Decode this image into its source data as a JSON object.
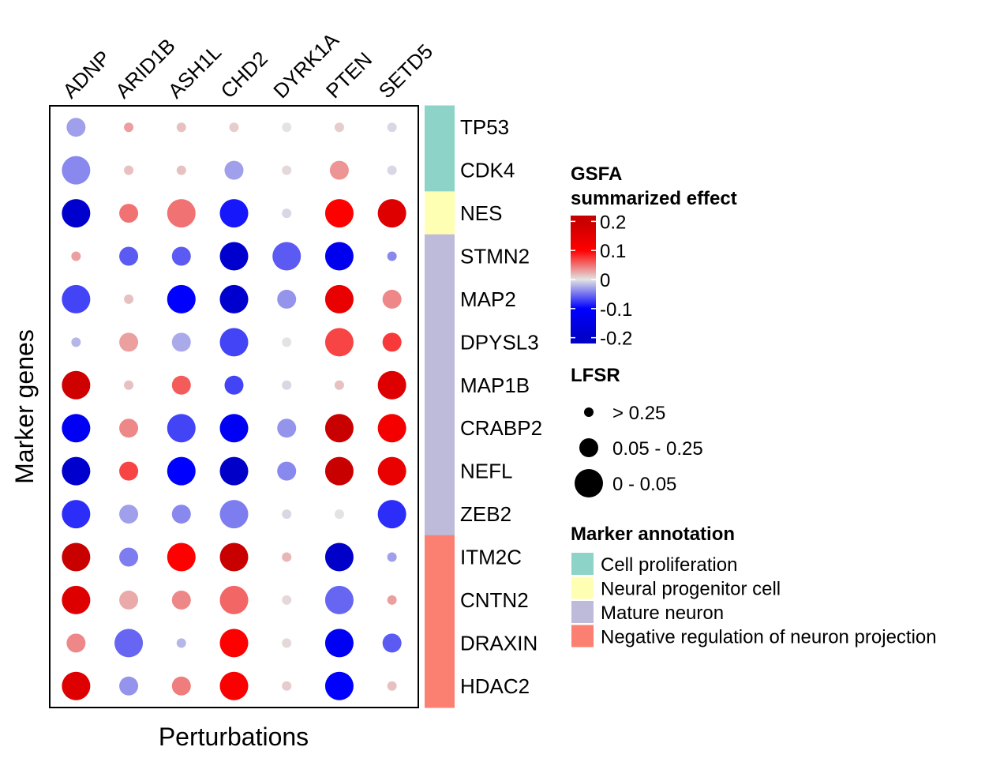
{
  "chart_data": {
    "type": "scatter",
    "subtype": "dot-matrix",
    "xlabel": "Perturbations",
    "ylabel": "Marker genes",
    "x_categories": [
      "ADNP",
      "ARID1B",
      "ASH1L",
      "CHD2",
      "DYRK1A",
      "PTEN",
      "SETD5"
    ],
    "y_categories": [
      "TP53",
      "CDK4",
      "NES",
      "STMN2",
      "MAP2",
      "DPYSL3",
      "MAP1B",
      "CRABP2",
      "NEFL",
      "ZEB2",
      "ITM2C",
      "CNTN2",
      "DRAXIN",
      "HDAC2"
    ],
    "row_annotation": [
      "Cell proliferation",
      "Cell proliferation",
      "Neural progenitor cell",
      "Mature neuron",
      "Mature neuron",
      "Mature neuron",
      "Mature neuron",
      "Mature neuron",
      "Mature neuron",
      "Mature neuron",
      "Negative regulation of neuron projection",
      "Negative regulation of neuron projection",
      "Negative regulation of neuron projection",
      "Negative regulation of neuron projection"
    ],
    "effect": [
      [
        -0.03,
        0.03,
        0.015,
        0.01,
        0.0,
        0.01,
        -0.005
      ],
      [
        -0.04,
        0.015,
        0.015,
        -0.03,
        0.005,
        0.035,
        -0.005
      ],
      [
        -0.19,
        0.05,
        0.05,
        -0.09,
        -0.005,
        0.1,
        0.16
      ],
      [
        0.03,
        -0.06,
        -0.06,
        -0.19,
        -0.06,
        -0.13,
        -0.04
      ],
      [
        -0.07,
        0.015,
        -0.1,
        -0.19,
        -0.035,
        0.14,
        0.04
      ],
      [
        -0.02,
        0.03,
        -0.025,
        -0.07,
        0.0,
        0.07,
        0.075
      ],
      [
        0.19,
        0.015,
        0.06,
        -0.07,
        -0.005,
        0.015,
        0.16
      ],
      [
        -0.12,
        0.04,
        -0.07,
        -0.12,
        -0.035,
        0.2,
        0.12
      ],
      [
        -0.19,
        0.07,
        -0.1,
        -0.21,
        -0.04,
        0.2,
        0.14
      ],
      [
        -0.08,
        -0.03,
        -0.04,
        -0.045,
        -0.005,
        0.0,
        -0.08
      ],
      [
        0.2,
        -0.045,
        0.1,
        0.2,
        0.02,
        -0.21,
        -0.03
      ],
      [
        0.16,
        0.025,
        0.04,
        0.055,
        0.005,
        -0.055,
        0.03
      ],
      [
        0.04,
        -0.055,
        -0.02,
        0.1,
        0.005,
        -0.12,
        -0.06
      ],
      [
        0.16,
        -0.035,
        0.045,
        0.11,
        0.01,
        -0.1,
        0.015
      ]
    ],
    "lfsr_category": [
      [
        1,
        0,
        0,
        0,
        0,
        0,
        0
      ],
      [
        2,
        0,
        0,
        1,
        0,
        1,
        0
      ],
      [
        2,
        1,
        2,
        2,
        0,
        2,
        2
      ],
      [
        0,
        1,
        1,
        2,
        2,
        2,
        0
      ],
      [
        2,
        0,
        2,
        2,
        1,
        2,
        1
      ],
      [
        0,
        1,
        1,
        2,
        0,
        2,
        1
      ],
      [
        2,
        0,
        1,
        1,
        0,
        0,
        2
      ],
      [
        2,
        1,
        2,
        2,
        1,
        2,
        2
      ],
      [
        2,
        1,
        2,
        2,
        1,
        2,
        2
      ],
      [
        2,
        1,
        1,
        2,
        0,
        0,
        2
      ],
      [
        2,
        1,
        2,
        2,
        0,
        2,
        0
      ],
      [
        2,
        1,
        1,
        2,
        0,
        2,
        0
      ],
      [
        1,
        2,
        0,
        2,
        0,
        2,
        1
      ],
      [
        2,
        1,
        1,
        2,
        0,
        2,
        0
      ]
    ],
    "color_scale": {
      "title_line1": "GSFA",
      "title_line2": "summarized effect",
      "range": [
        -0.22,
        0.22
      ],
      "ticks": [
        0.2,
        0.1,
        0,
        -0.1,
        -0.2
      ],
      "tick_labels": [
        "0.2",
        "0.1",
        "0",
        "-0.1",
        "-0.2"
      ],
      "stops": [
        {
          "value": -0.2,
          "color": "#0000c8"
        },
        {
          "value": -0.1,
          "color": "#0000ff"
        },
        {
          "value": 0,
          "color": "#e3e3e3"
        },
        {
          "value": 0.1,
          "color": "#ff0000"
        },
        {
          "value": 0.2,
          "color": "#c80000"
        }
      ]
    },
    "size_legend": {
      "title": "LFSR",
      "items": [
        {
          "label": "> 0.25",
          "category": 0
        },
        {
          "label": "0.05 - 0.25",
          "category": 1
        },
        {
          "label": "0 - 0.05",
          "category": 2
        }
      ]
    },
    "annotation_legend": {
      "title": "Marker annotation",
      "items": [
        {
          "label": "Cell proliferation",
          "color": "#8DD3C7"
        },
        {
          "label": "Neural progenitor cell",
          "color": "#FFFFB3"
        },
        {
          "label": "Mature neuron",
          "color": "#BEBADA"
        },
        {
          "label": "Negative regulation of neuron projection",
          "color": "#FB8072"
        }
      ]
    },
    "grid": false,
    "legend_position": "right"
  }
}
